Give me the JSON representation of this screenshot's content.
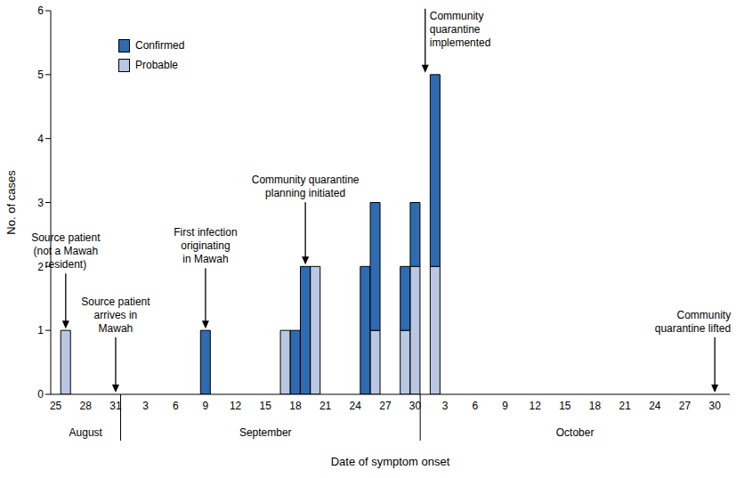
{
  "chart_data": {
    "type": "bar",
    "stacked": true,
    "grid": false,
    "legend": "upper left",
    "x_label": "Date of symptom onset",
    "y_label": "No. of cases",
    "categories": [
      "25",
      null,
      null,
      "28",
      null,
      null,
      "31",
      null,
      null,
      "3",
      null,
      null,
      "6",
      null,
      null,
      "9",
      null,
      null,
      "12",
      null,
      null,
      "15",
      null,
      null,
      "18",
      null,
      null,
      "21",
      null,
      null,
      "24",
      null,
      null,
      "27",
      null,
      null,
      "30",
      null,
      null,
      "3",
      null,
      null,
      "6",
      null,
      null,
      "9",
      null,
      null,
      "12",
      null,
      null,
      "15",
      null,
      null,
      "18",
      null,
      null,
      "21",
      null,
      null,
      "24",
      null,
      null,
      "27",
      null,
      null,
      "30",
      null
    ],
    "months": [
      {
        "label": "August",
        "start": 0
      },
      {
        "label": "September",
        "start": 7
      },
      {
        "label": "October",
        "start": 37
      }
    ],
    "series": [
      {
        "name": "Confirmed",
        "color": "#2e6bb0",
        "values": [
          0,
          0,
          0,
          0,
          0,
          0,
          0,
          0,
          0,
          0,
          0,
          0,
          0,
          0,
          0,
          1,
          0,
          0,
          0,
          0,
          0,
          0,
          0,
          0,
          1,
          2,
          0,
          0,
          0,
          0,
          0,
          2,
          2,
          0,
          0,
          1,
          1,
          0,
          3,
          0,
          0,
          0,
          0,
          0,
          0,
          0,
          0,
          0,
          0,
          0,
          0,
          0,
          0,
          0,
          0,
          0,
          0,
          0,
          0,
          0,
          0,
          0,
          0,
          0,
          0,
          0,
          0,
          0
        ]
      },
      {
        "name": "Probable",
        "color": "#b9c7e2",
        "values": [
          0,
          1,
          0,
          0,
          0,
          0,
          0,
          0,
          0,
          0,
          0,
          0,
          0,
          0,
          0,
          0,
          0,
          0,
          0,
          0,
          0,
          0,
          0,
          1,
          0,
          0,
          2,
          0,
          0,
          0,
          0,
          0,
          1,
          0,
          0,
          1,
          2,
          0,
          2,
          0,
          0,
          0,
          0,
          0,
          0,
          0,
          0,
          0,
          0,
          0,
          0,
          0,
          0,
          0,
          0,
          0,
          0,
          0,
          0,
          0,
          0,
          0,
          0,
          0,
          0,
          0,
          0,
          0
        ]
      }
    ],
    "ylim": [
      0,
      6
    ],
    "yticks": [
      0,
      1,
      2,
      3,
      4,
      5,
      6
    ],
    "annotations": [
      {
        "text": [
          "Source patient",
          "(not a Mawah",
          "resident)"
        ],
        "at": 1,
        "y": 1
      },
      {
        "text": [
          "Source patient",
          "arrives in",
          "Mawah"
        ],
        "at": 6,
        "y": 0
      },
      {
        "text": [
          "First infection",
          "originating",
          "in Mawah"
        ],
        "at": 15,
        "y": 1
      },
      {
        "text": [
          "Community quarantine",
          "planning initiated"
        ],
        "at": 25,
        "y": 2
      },
      {
        "text": [
          "Community",
          "quarantine",
          "implemented"
        ],
        "at": 37,
        "y": 5
      },
      {
        "text": [
          "Community",
          "quarantine lifted"
        ],
        "at": 66,
        "y": 0
      }
    ]
  }
}
